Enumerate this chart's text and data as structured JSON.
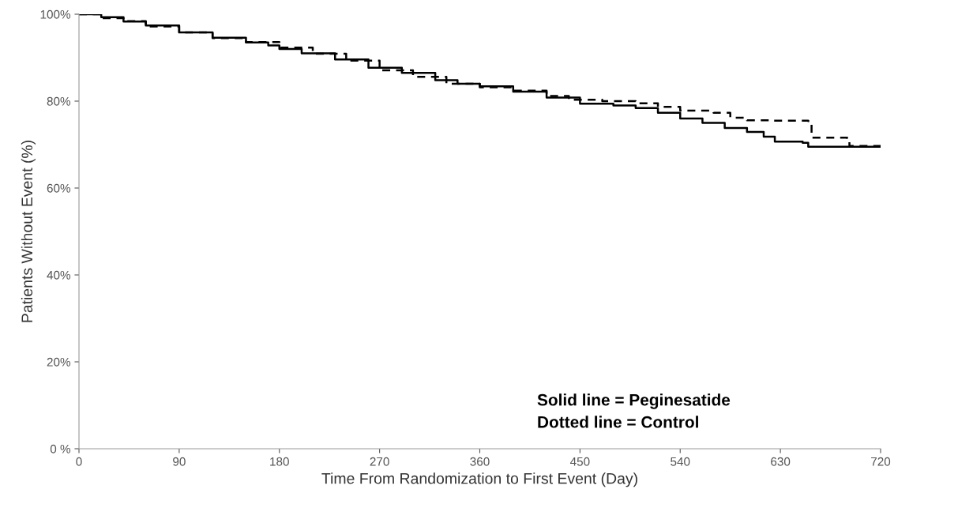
{
  "chart_data": {
    "type": "step",
    "xlabel": "Time From Randomization to First Event (Day)",
    "ylabel": "Patients Without Event (%)",
    "xlim": [
      0,
      720
    ],
    "xticks": [
      0,
      90,
      180,
      270,
      360,
      450,
      540,
      630,
      720
    ],
    "ylim": [
      0,
      100
    ],
    "yticks": [
      {
        "value": 0,
        "label": "0 %"
      },
      {
        "value": 20,
        "label": "20%"
      },
      {
        "value": 40,
        "label": "40%"
      },
      {
        "value": 60,
        "label": "60%"
      },
      {
        "value": 80,
        "label": "80%"
      },
      {
        "value": 100,
        "label": "100%"
      }
    ],
    "grid": false,
    "legend": false,
    "annotations": [
      "Solid line = Peginesatide",
      "Dotted line = Control"
    ],
    "series": [
      {
        "color": "#000000",
        "line_style": "solid",
        "x": [
          0,
          20,
          40,
          60,
          90,
          120,
          150,
          170,
          180,
          200,
          230,
          260,
          290,
          320,
          340,
          360,
          390,
          420,
          450,
          480,
          500,
          520,
          540,
          560,
          580,
          600,
          615,
          625,
          650,
          655,
          720
        ],
        "values": [
          100,
          99.3,
          98.3,
          97.4,
          95.8,
          94.6,
          93.5,
          92.8,
          92.0,
          91.0,
          89.6,
          87.7,
          86.5,
          84.8,
          84.0,
          83.4,
          82.2,
          80.8,
          79.4,
          79.0,
          78.4,
          77.3,
          76.0,
          75.0,
          73.8,
          72.9,
          71.8,
          70.7,
          70.4,
          69.5,
          69.5
        ]
      },
      {
        "color": "#000000",
        "line_style": "dashed",
        "x": [
          0,
          20,
          40,
          60,
          90,
          120,
          150,
          180,
          210,
          240,
          270,
          300,
          330,
          360,
          390,
          420,
          440,
          470,
          500,
          520,
          540,
          570,
          585,
          600,
          620,
          655,
          658,
          690,
          692,
          720
        ],
        "values": [
          100,
          99.1,
          98.4,
          97.2,
          95.8,
          94.5,
          93.6,
          92.3,
          90.9,
          89.3,
          87.1,
          85.6,
          84.0,
          83.2,
          82.4,
          81.2,
          80.3,
          80.0,
          79.5,
          78.7,
          77.8,
          77.3,
          76.2,
          75.6,
          75.5,
          75.4,
          71.6,
          71.5,
          69.7,
          69.7
        ]
      }
    ]
  }
}
